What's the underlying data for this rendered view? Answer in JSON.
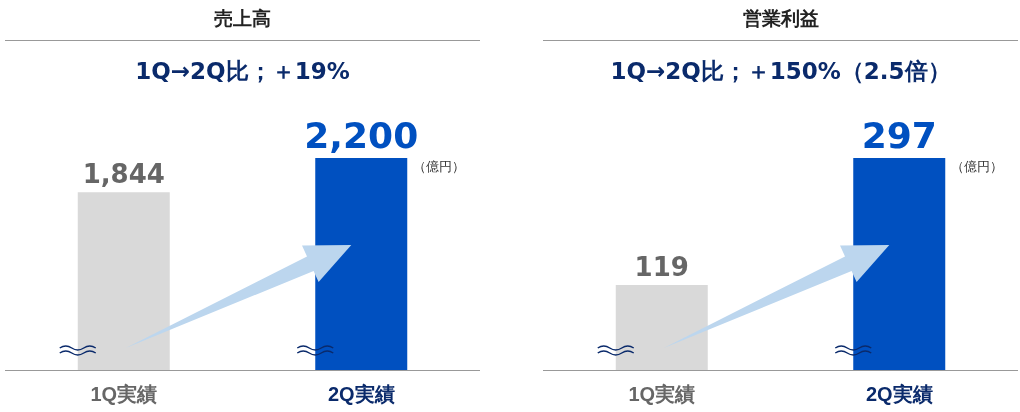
{
  "chart_data": [
    {
      "type": "bar",
      "title": "売上高",
      "subtitle": "1Q→2Q比；＋19%",
      "categories": [
        "1Q実績",
        "2Q実績"
      ],
      "values": [
        1844,
        2200
      ],
      "value_labels": [
        "1,844",
        "2,200"
      ],
      "colors": [
        "#d9d9d9",
        "#0050c0"
      ],
      "annotations": [
        "（億円）"
      ]
    },
    {
      "type": "bar",
      "title": "営業利益",
      "subtitle": "1Q→2Q比；＋150%（2.5倍）",
      "categories": [
        "1Q実績",
        "2Q実績"
      ],
      "values": [
        119,
        297
      ],
      "colors": [
        "#d9d9d9",
        "#0050c0"
      ],
      "data_labels": true,
      "annotations": [
        "（億円）"
      ]
    }
  ]
}
